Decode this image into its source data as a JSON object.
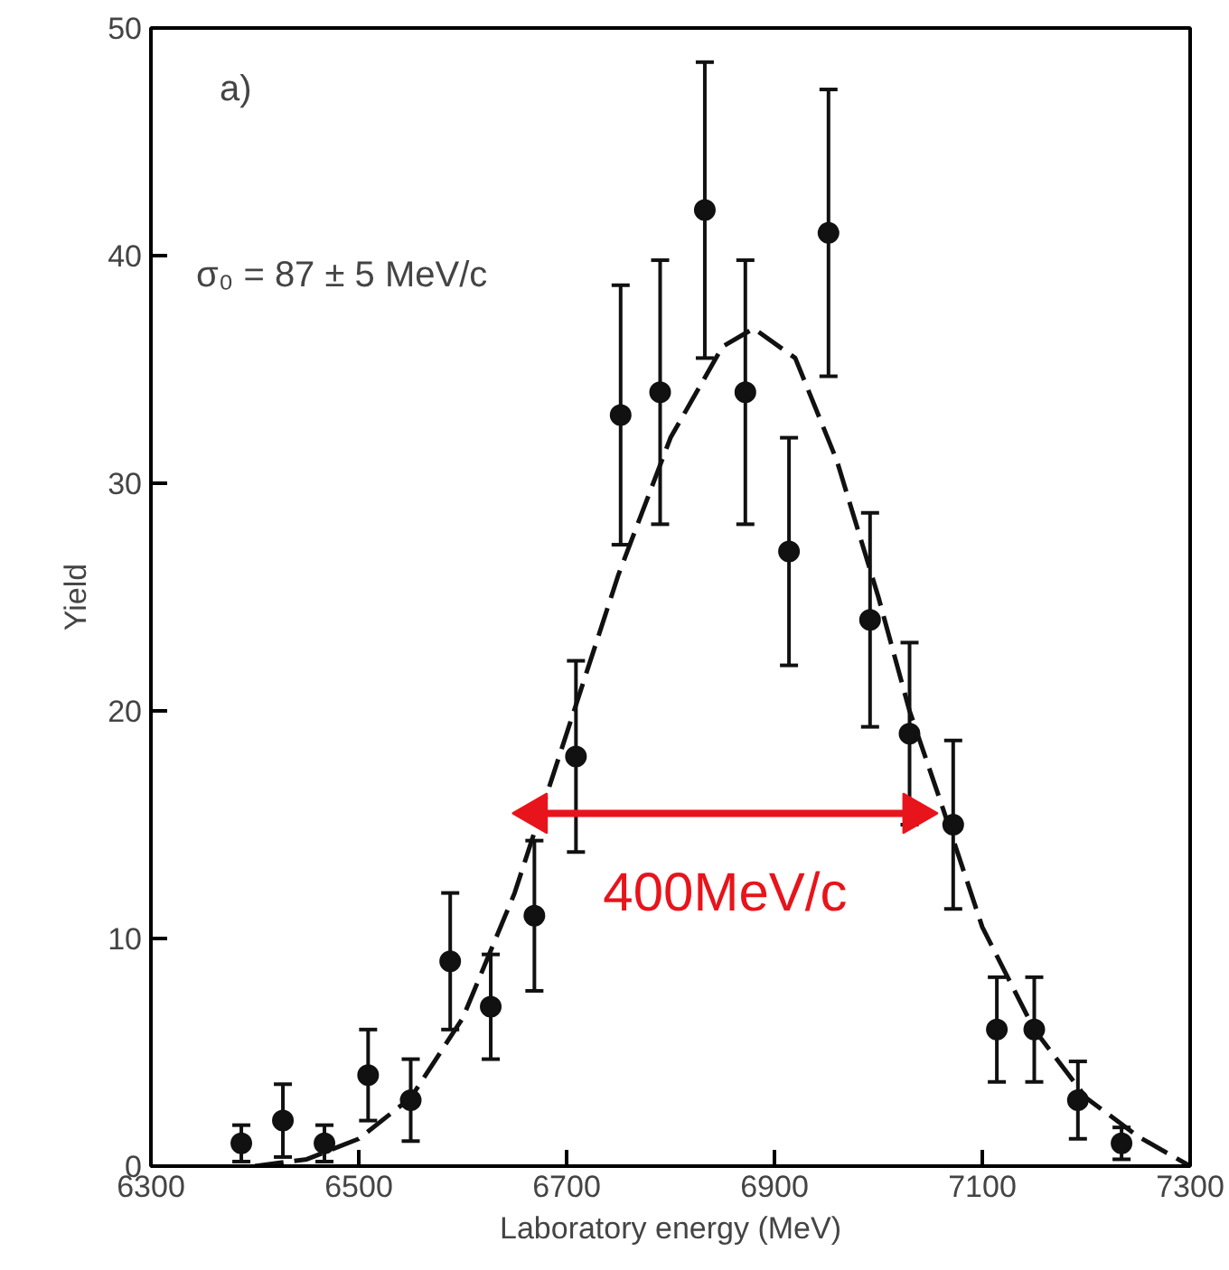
{
  "chart_data": {
    "type": "scatter",
    "xlabel": "Laboratory energy (MeV)",
    "ylabel": "Yield",
    "xlim": [
      6300,
      7300
    ],
    "xticks": [
      6300,
      6500,
      6700,
      6900,
      7100,
      7300
    ],
    "ylim": [
      0,
      50
    ],
    "yticks": [
      0,
      10,
      20,
      30,
      40,
      50
    ],
    "grid": false,
    "marker": "circle",
    "annotations": [
      "a)",
      "σ₀ = 87 ± 5 MeV/c"
    ],
    "series": [
      {
        "color": "#111111",
        "x": [
          6387,
          6427,
          6467,
          6509,
          6550,
          6588,
          6627,
          6669,
          6709,
          6752,
          6790,
          6833,
          6872,
          6914,
          6952,
          6992,
          7030,
          7072,
          7114,
          7150,
          7192,
          7234
        ],
        "values": [
          1,
          2,
          1,
          4,
          2.9,
          9,
          7,
          11,
          18,
          33,
          34,
          42,
          34,
          27,
          41,
          24,
          19,
          15,
          6,
          6,
          2.9,
          1
        ],
        "errors": [
          0.8,
          1.6,
          0.8,
          2,
          1.8,
          3,
          2.3,
          3.3,
          4.2,
          5.7,
          5.8,
          6.5,
          5.8,
          5,
          6.3,
          4.7,
          4,
          3.7,
          2.3,
          2.3,
          1.7,
          0.7
        ]
      },
      {
        "type": "line",
        "color": "#111111",
        "line_style": "dashed",
        "marker": "none",
        "x": [
          6400,
          6450,
          6500,
          6550,
          6600,
          6650,
          6700,
          6750,
          6800,
          6850,
          6880,
          6920,
          6960,
          7000,
          7030,
          7060,
          7100,
          7150,
          7200,
          7250,
          7300
        ],
        "values": [
          0,
          0.3,
          1.2,
          3,
          6.5,
          12,
          19,
          26,
          32,
          36,
          36.8,
          35.5,
          31,
          25,
          20,
          16,
          10.5,
          6,
          3,
          1.3,
          0
        ]
      },
      {
        "type": "line",
        "name": "400MeV/c",
        "color": "#e8141b",
        "line_style": "solid",
        "marker": "triangle",
        "x": [
          6670,
          7035
        ],
        "values": [
          15.5,
          15.5
        ]
      }
    ]
  }
}
